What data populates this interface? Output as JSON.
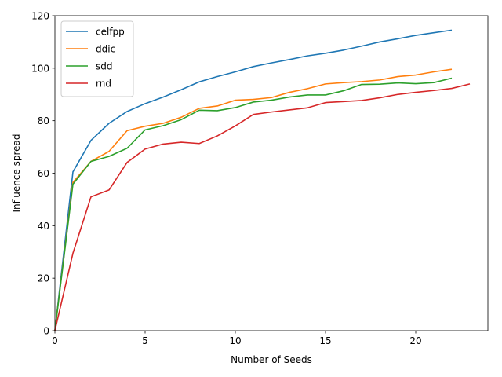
{
  "chart_data": {
    "type": "line",
    "xlabel": "Number of Seeds",
    "ylabel": "Influence spread",
    "xlim": [
      0,
      24
    ],
    "ylim": [
      0,
      120
    ],
    "xticks": [
      0,
      5,
      10,
      15,
      20
    ],
    "yticks": [
      0,
      20,
      40,
      60,
      80,
      100,
      120
    ],
    "grid": false,
    "legend_position": "top-left",
    "series": [
      {
        "name": "celfpp",
        "color": "#1f77b4",
        "x": [
          0,
          1,
          2,
          3,
          4,
          5,
          6,
          7,
          8,
          9,
          10,
          11,
          12,
          13,
          14,
          15,
          16,
          17,
          18,
          19,
          20,
          21,
          22
        ],
        "values": [
          0,
          60.5,
          72.5,
          79,
          83.5,
          86.5,
          89,
          91.8,
          94.8,
          96.8,
          98.6,
          100.6,
          102,
          103.3,
          104.7,
          105.7,
          106.9,
          108.4,
          110,
          111.2,
          112.5,
          113.5,
          114.5
        ]
      },
      {
        "name": "ddic",
        "color": "#ff7f0e",
        "x": [
          0,
          1,
          2,
          3,
          4,
          5,
          6,
          7,
          8,
          9,
          10,
          11,
          12,
          13,
          14,
          15,
          16,
          17,
          18,
          19,
          20,
          21,
          22
        ],
        "values": [
          0,
          56.5,
          64.5,
          68.3,
          76.2,
          77.9,
          79,
          81.3,
          84.7,
          85.6,
          87.8,
          88.1,
          88.8,
          90.8,
          92.2,
          94,
          94.5,
          94.9,
          95.5,
          96.8,
          97.4,
          98.6,
          99.6
        ]
      },
      {
        "name": "sdd",
        "color": "#2ca02c",
        "x": [
          0,
          1,
          2,
          3,
          4,
          5,
          6,
          7,
          8,
          9,
          10,
          11,
          12,
          13,
          14,
          15,
          16,
          17,
          18,
          19,
          20,
          21,
          22
        ],
        "values": [
          0,
          55.8,
          64.5,
          66.4,
          69.5,
          76.5,
          78.1,
          80.4,
          84,
          83.8,
          85,
          87.1,
          87.8,
          89,
          89.8,
          89.8,
          91.4,
          93.8,
          93.9,
          94.4,
          94.1,
          94.5,
          96.2
        ]
      },
      {
        "name": "rnd",
        "color": "#d62728",
        "x": [
          0,
          1,
          2,
          3,
          4,
          5,
          6,
          7,
          8,
          9,
          10,
          11,
          12,
          13,
          14,
          15,
          16,
          17,
          18,
          19,
          20,
          21,
          22,
          23
        ],
        "values": [
          0,
          29.5,
          51,
          53.6,
          64.1,
          69.2,
          71.1,
          71.8,
          71.3,
          74.2,
          78,
          82.4,
          83.3,
          84.1,
          84.9,
          86.9,
          87.3,
          87.7,
          88.7,
          90,
          90.8,
          91.5,
          92.3,
          94
        ]
      }
    ]
  }
}
